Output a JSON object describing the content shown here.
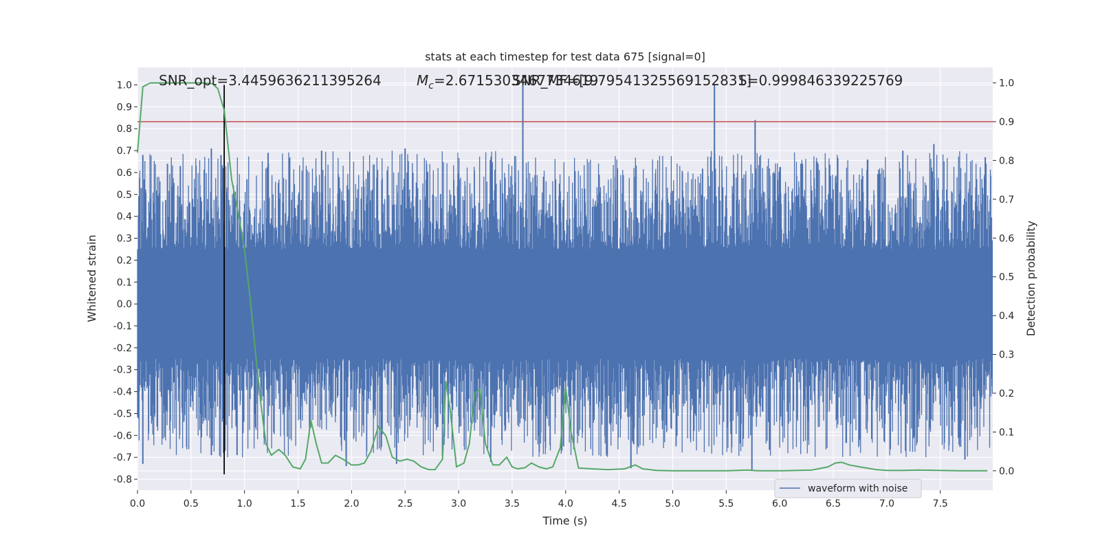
{
  "chart_data": {
    "type": "line",
    "title": "stats at each timestep for test data 675 [signal=0]",
    "xlabel": "Time (s)",
    "ylabel": "Whitened strain",
    "y2label": "Detection probability",
    "xlim": [
      0.0,
      7.99
    ],
    "ylim": [
      -0.85,
      1.08
    ],
    "y2lim": [
      -0.05,
      1.04
    ],
    "x_ticks": [
      "0.0",
      "0.5",
      "1.0",
      "1.5",
      "2.0",
      "2.5",
      "3.0",
      "3.5",
      "4.0",
      "4.5",
      "5.0",
      "5.5",
      "6.0",
      "6.5",
      "7.0",
      "7.5"
    ],
    "y_ticks": [
      "1.0",
      "0.9",
      "0.8",
      "0.7",
      "0.6",
      "0.5",
      "0.4",
      "0.3",
      "0.2",
      "0.1",
      "0.0",
      "-0.1",
      "-0.2",
      "-0.3",
      "-0.4",
      "-0.5",
      "-0.6",
      "-0.7",
      "-0.8"
    ],
    "y2_ticks": [
      "1.0",
      "0.9",
      "0.8",
      "0.7",
      "0.6",
      "0.5",
      "0.4",
      "0.3",
      "0.2",
      "0.1",
      "0.0"
    ],
    "grid": true,
    "legend_position": "lower-right",
    "annotations": {
      "snr_opt": "SNR_opt=3.4459636211395264",
      "mc_symbol": "M",
      "mc_sub": "c",
      "mc_value": "=2.6715303467734619",
      "snr_mf": "SNR_MF=[9.79541325569152831]",
      "s_value": "S=0.999846339225769"
    },
    "threshold_line": {
      "y2": 0.9,
      "color": "#c44e52"
    },
    "marker_line": {
      "x": 0.81,
      "color": "#000000"
    },
    "series": [
      {
        "name": "waveform with noise",
        "color": "#4c72b0",
        "kind": "noise",
        "core_amplitude": 0.25,
        "envelope_amplitude": 0.45,
        "spikes": [
          {
            "x": 0.05,
            "y": 0.68
          },
          {
            "x": 0.05,
            "y": -0.73
          },
          {
            "x": 0.28,
            "y": 0.64
          },
          {
            "x": 0.4,
            "y": 0.63
          },
          {
            "x": 0.69,
            "y": 0.71
          },
          {
            "x": 0.69,
            "y": -0.69
          },
          {
            "x": 0.78,
            "y": 0.68
          },
          {
            "x": 0.93,
            "y": -0.69
          },
          {
            "x": 1.22,
            "y": 0.69
          },
          {
            "x": 1.72,
            "y": 0.7
          },
          {
            "x": 1.95,
            "y": -0.74
          },
          {
            "x": 2.5,
            "y": 0.71
          },
          {
            "x": 2.42,
            "y": -0.73
          },
          {
            "x": 3.6,
            "y": 1.0
          },
          {
            "x": 3.3,
            "y": -0.72
          },
          {
            "x": 3.98,
            "y": -0.65
          },
          {
            "x": 4.61,
            "y": -0.75
          },
          {
            "x": 5.39,
            "y": 1.0
          },
          {
            "x": 5.39,
            "y": -0.35
          },
          {
            "x": 5.77,
            "y": 0.84
          },
          {
            "x": 5.74,
            "y": -0.76
          },
          {
            "x": 6.75,
            "y": -0.62
          },
          {
            "x": 7.15,
            "y": 0.7
          },
          {
            "x": 7.44,
            "y": 0.73
          },
          {
            "x": 7.73,
            "y": -0.71
          },
          {
            "x": 7.92,
            "y": 0.67
          }
        ]
      },
      {
        "name": "",
        "color": "#55a868",
        "axis": "right",
        "x": [
          0.0,
          0.05,
          0.12,
          0.2,
          0.3,
          0.4,
          0.5,
          0.6,
          0.7,
          0.75,
          0.81,
          0.88,
          0.95,
          1.0,
          1.05,
          1.1,
          1.15,
          1.2,
          1.25,
          1.32,
          1.38,
          1.45,
          1.52,
          1.57,
          1.62,
          1.67,
          1.72,
          1.78,
          1.85,
          1.92,
          2.0,
          2.06,
          2.12,
          2.18,
          2.25,
          2.32,
          2.38,
          2.45,
          2.52,
          2.58,
          2.65,
          2.72,
          2.78,
          2.85,
          2.88,
          2.92,
          2.98,
          3.05,
          3.1,
          3.15,
          3.2,
          3.25,
          3.32,
          3.38,
          3.45,
          3.5,
          3.55,
          3.62,
          3.68,
          3.75,
          3.82,
          3.88,
          3.95,
          4.0,
          4.05,
          4.12,
          4.25,
          4.4,
          4.55,
          4.65,
          4.72,
          4.85,
          5.0,
          5.5,
          5.7,
          5.8,
          6.0,
          6.3,
          6.45,
          6.52,
          6.58,
          6.65,
          6.75,
          6.9,
          7.0,
          7.15,
          7.3,
          7.5,
          7.7,
          7.94
        ],
        "y": [
          0.82,
          0.99,
          1.0,
          1.0,
          1.0,
          1.0,
          1.0,
          1.0,
          0.998,
          0.985,
          0.93,
          0.75,
          0.65,
          0.57,
          0.45,
          0.31,
          0.18,
          0.07,
          0.04,
          0.055,
          0.04,
          0.01,
          0.005,
          0.03,
          0.13,
          0.07,
          0.02,
          0.02,
          0.04,
          0.03,
          0.015,
          0.015,
          0.02,
          0.05,
          0.115,
          0.09,
          0.035,
          0.025,
          0.03,
          0.025,
          0.01,
          0.003,
          0.003,
          0.03,
          0.23,
          0.16,
          0.01,
          0.02,
          0.07,
          0.2,
          0.21,
          0.07,
          0.015,
          0.015,
          0.035,
          0.01,
          0.005,
          0.008,
          0.02,
          0.01,
          0.005,
          0.01,
          0.06,
          0.215,
          0.1,
          0.007,
          0.005,
          0.003,
          0.005,
          0.015,
          0.005,
          0.001,
          0.0,
          0.0,
          0.002,
          0.0,
          0.0,
          0.002,
          0.01,
          0.02,
          0.022,
          0.015,
          0.01,
          0.003,
          0.001,
          0.001,
          0.002,
          0.001,
          0.0,
          0.0
        ]
      }
    ]
  }
}
